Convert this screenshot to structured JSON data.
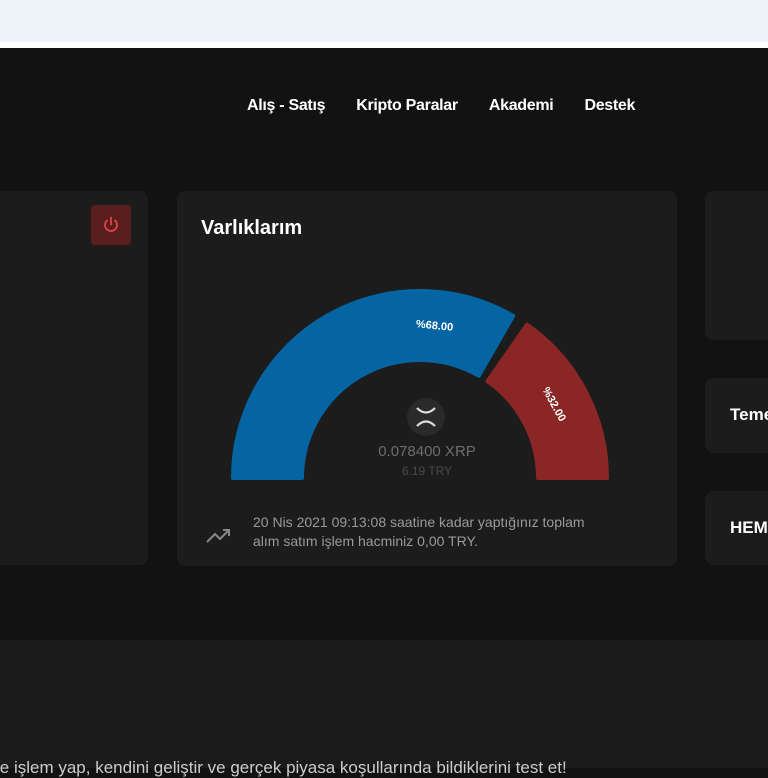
{
  "nav": [
    "Alış - Satış",
    "Kripto Paralar",
    "Akademi",
    "Destek"
  ],
  "assets": {
    "title": "Varlıklarım",
    "chart_data": {
      "type": "pie",
      "style": "half-donut",
      "values": [
        68,
        32
      ],
      "labels": [
        "%68.00",
        "%32.00"
      ],
      "colors": [
        "#0565a3",
        "#8b2626"
      ]
    },
    "coin_icon": "xrp-icon",
    "amount": "0.078400 XRP",
    "try_value": "6.19 TRY",
    "volume_text_1": "20 Nis 2021 09:13:08 saatine kadar yaptığınız toplam",
    "volume_text_2": "alım satım işlem hacminiz 0,00 TRY."
  },
  "right_cards": [
    "Teme",
    "HEM"
  ],
  "bottom_text": "le işlem yap, kendini geliştir ve gerçek piyasa koşullarında bildiklerini test et!"
}
